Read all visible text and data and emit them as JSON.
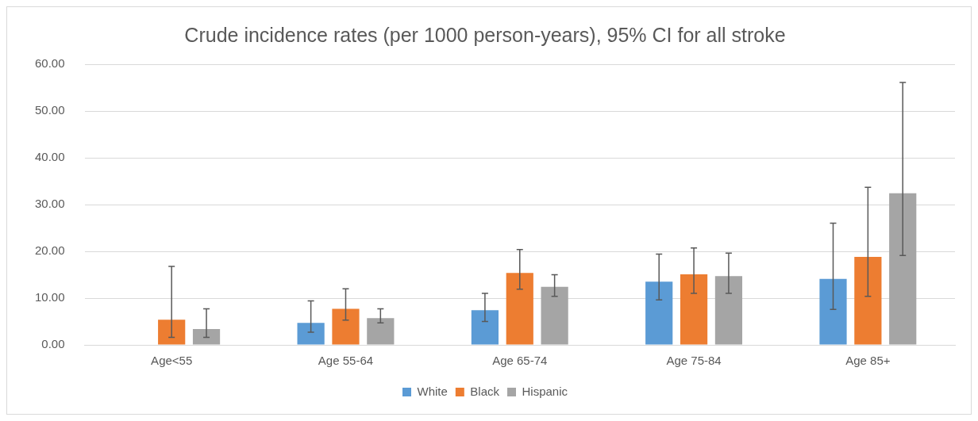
{
  "chart_data": {
    "type": "bar",
    "title": "Crude incidence rates (per 1000 person-years), 95% CI for all stroke",
    "categories": [
      "Age<55",
      "Age 55-64",
      "Age 65-74",
      "Age 75-84",
      "Age 85+"
    ],
    "series": [
      {
        "name": "White",
        "color": "#5b9bd5",
        "values": [
          null,
          4.7,
          7.4,
          13.5,
          14.1
        ],
        "errors": [
          null,
          [
            2.7,
            9.4
          ],
          [
            5.0,
            11.0
          ],
          [
            9.6,
            19.4
          ],
          [
            7.6,
            26.0
          ]
        ]
      },
      {
        "name": "Black",
        "color": "#ed7d31",
        "values": [
          5.4,
          7.7,
          15.4,
          15.1,
          18.8
        ],
        "errors": [
          [
            1.6,
            16.8
          ],
          [
            5.3,
            12.0
          ],
          [
            11.9,
            20.4
          ],
          [
            11.0,
            20.7
          ],
          [
            10.4,
            33.7
          ]
        ]
      },
      {
        "name": "Hispanic",
        "color": "#a5a5a5",
        "values": [
          3.4,
          5.7,
          12.4,
          14.7,
          32.4
        ],
        "errors": [
          [
            1.6,
            7.7
          ],
          [
            4.7,
            7.7
          ],
          [
            10.4,
            15.0
          ],
          [
            11.0,
            19.6
          ],
          [
            19.1,
            56.1
          ]
        ]
      }
    ],
    "ylim": [
      0,
      60
    ],
    "yticks": [
      {
        "value": 0,
        "label": "0.00"
      },
      {
        "value": 10,
        "label": "10.00"
      },
      {
        "value": 20,
        "label": "20.00"
      },
      {
        "value": 30,
        "label": "30.00"
      },
      {
        "value": 40,
        "label": "40.00"
      },
      {
        "value": 50,
        "label": "50.00"
      },
      {
        "value": 60,
        "label": "60.00"
      }
    ],
    "grid": "y",
    "legend": "bottom"
  }
}
